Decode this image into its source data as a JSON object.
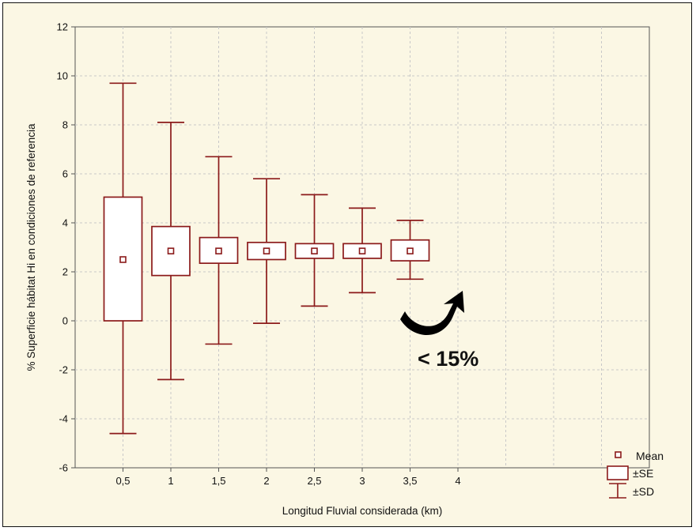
{
  "chart_data": {
    "type": "box",
    "xlabel": "Longitud Fluvial considerada (km)",
    "ylabel": "% Superficie hábitat Hi en condiciones de referencia",
    "xlim": [
      0,
      6
    ],
    "ylim": [
      -6,
      12
    ],
    "x_ticks": [
      0.5,
      1,
      1.5,
      2,
      2.5,
      3,
      3.5,
      4
    ],
    "x_tick_labels": [
      "0,5",
      "1",
      "1,5",
      "2",
      "2,5",
      "3",
      "3,5",
      "4"
    ],
    "y_ticks": [
      -6,
      -4,
      -2,
      0,
      2,
      4,
      6,
      8,
      10,
      12
    ],
    "grid": true,
    "colors": {
      "series": "#8b1a1a",
      "background": "#fbf7e4"
    },
    "boxes": [
      {
        "x": 0.5,
        "mean": 2.5,
        "se_low": 0.0,
        "se_high": 5.05,
        "sd_low": -4.6,
        "sd_high": 9.7
      },
      {
        "x": 1.0,
        "mean": 2.85,
        "se_low": 1.85,
        "se_high": 3.85,
        "sd_low": -2.4,
        "sd_high": 8.1
      },
      {
        "x": 1.5,
        "mean": 2.85,
        "se_low": 2.35,
        "se_high": 3.4,
        "sd_low": -0.95,
        "sd_high": 6.7
      },
      {
        "x": 2.0,
        "mean": 2.85,
        "se_low": 2.5,
        "se_high": 3.2,
        "sd_low": -0.1,
        "sd_high": 5.8
      },
      {
        "x": 2.5,
        "mean": 2.85,
        "se_low": 2.55,
        "se_high": 3.15,
        "sd_low": 0.6,
        "sd_high": 5.15
      },
      {
        "x": 3.0,
        "mean": 2.85,
        "se_low": 2.55,
        "se_high": 3.15,
        "sd_low": 1.15,
        "sd_high": 4.6
      },
      {
        "x": 3.5,
        "mean": 2.85,
        "se_low": 2.45,
        "se_high": 3.3,
        "sd_low": 1.7,
        "sd_high": 4.1
      }
    ],
    "legend": {
      "placement": "bottom-right",
      "entries": [
        "Mean",
        "±SE",
        "±SD"
      ]
    },
    "annotations": [
      {
        "text": "< 15%",
        "x": 3.1,
        "y": -1.5,
        "arrow": "curved arrow pointing up toward the 3,5 km box"
      }
    ]
  }
}
